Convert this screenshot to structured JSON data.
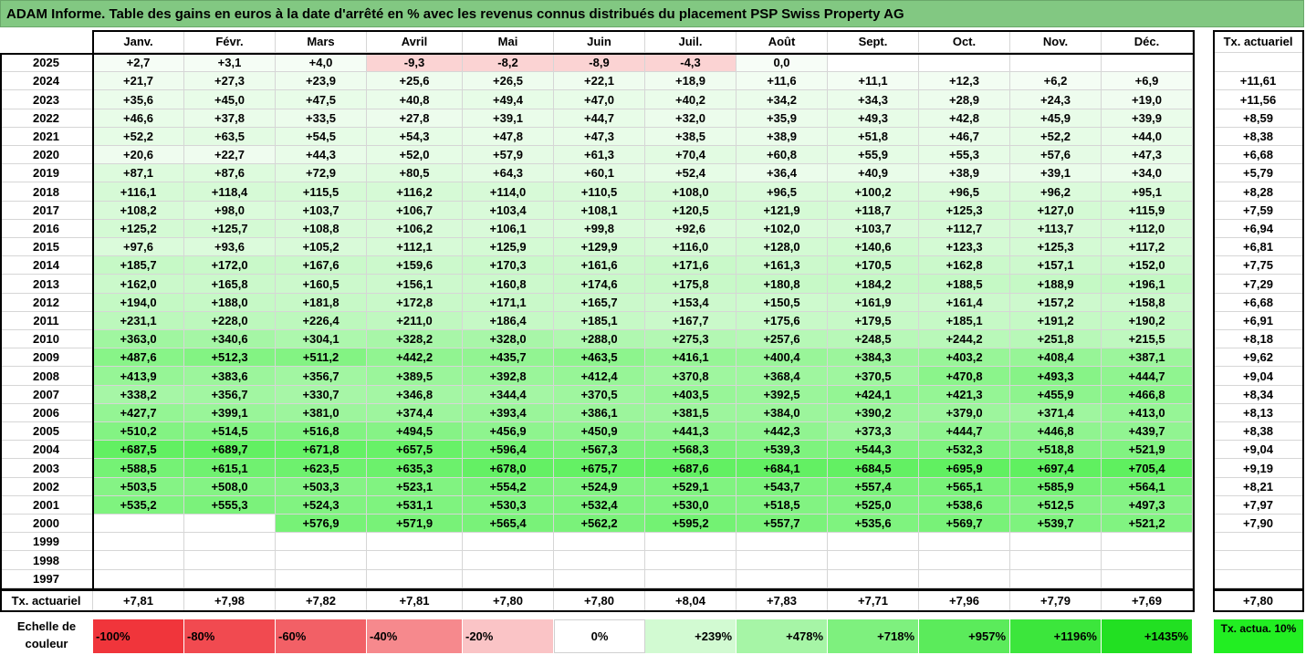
{
  "title": "ADAM Informe. Table des gains en euros à la date d'arrêté en % avec les revenus connus distribués du placement PSP Swiss Property AG",
  "chart_data": {
    "type": "heatmap",
    "months": [
      "Janv.",
      "Févr.",
      "Mars",
      "Avril",
      "Mai",
      "Juin",
      "Juil.",
      "Août",
      "Sept.",
      "Oct.",
      "Nov.",
      "Déc."
    ],
    "rate_header": "Tx. actuariel",
    "rows": [
      {
        "year": "2025",
        "values": [
          "+2,7",
          "+3,1",
          "+4,0",
          "-9,3",
          "-8,2",
          "-8,9",
          "-4,3",
          "0,0",
          "",
          "",
          "",
          ""
        ],
        "rate": ""
      },
      {
        "year": "2024",
        "values": [
          "+21,7",
          "+27,3",
          "+23,9",
          "+25,6",
          "+26,5",
          "+22,1",
          "+18,9",
          "+11,6",
          "+11,1",
          "+12,3",
          "+6,2",
          "+6,9"
        ],
        "rate": "+11,61"
      },
      {
        "year": "2023",
        "values": [
          "+35,6",
          "+45,0",
          "+47,5",
          "+40,8",
          "+49,4",
          "+47,0",
          "+40,2",
          "+34,2",
          "+34,3",
          "+28,9",
          "+24,3",
          "+19,0"
        ],
        "rate": "+11,56"
      },
      {
        "year": "2022",
        "values": [
          "+46,6",
          "+37,8",
          "+33,5",
          "+27,8",
          "+39,1",
          "+44,7",
          "+32,0",
          "+35,9",
          "+49,3",
          "+42,8",
          "+45,9",
          "+39,9"
        ],
        "rate": "+8,59"
      },
      {
        "year": "2021",
        "values": [
          "+52,2",
          "+63,5",
          "+54,5",
          "+54,3",
          "+47,8",
          "+47,3",
          "+38,5",
          "+38,9",
          "+51,8",
          "+46,7",
          "+52,2",
          "+44,0"
        ],
        "rate": "+8,38"
      },
      {
        "year": "2020",
        "values": [
          "+20,6",
          "+22,7",
          "+44,3",
          "+52,0",
          "+57,9",
          "+61,3",
          "+70,4",
          "+60,8",
          "+55,9",
          "+55,3",
          "+57,6",
          "+47,3"
        ],
        "rate": "+6,68"
      },
      {
        "year": "2019",
        "values": [
          "+87,1",
          "+87,6",
          "+72,9",
          "+80,5",
          "+64,3",
          "+60,1",
          "+52,4",
          "+36,4",
          "+40,9",
          "+38,9",
          "+39,1",
          "+34,0"
        ],
        "rate": "+5,79"
      },
      {
        "year": "2018",
        "values": [
          "+116,1",
          "+118,4",
          "+115,5",
          "+116,2",
          "+114,0",
          "+110,5",
          "+108,0",
          "+96,5",
          "+100,2",
          "+96,5",
          "+96,2",
          "+95,1"
        ],
        "rate": "+8,28"
      },
      {
        "year": "2017",
        "values": [
          "+108,2",
          "+98,0",
          "+103,7",
          "+106,7",
          "+103,4",
          "+108,1",
          "+120,5",
          "+121,9",
          "+118,7",
          "+125,3",
          "+127,0",
          "+115,9"
        ],
        "rate": "+7,59"
      },
      {
        "year": "2016",
        "values": [
          "+125,2",
          "+125,7",
          "+108,8",
          "+106,2",
          "+106,1",
          "+99,8",
          "+92,6",
          "+102,0",
          "+103,7",
          "+112,7",
          "+113,7",
          "+112,0"
        ],
        "rate": "+6,94"
      },
      {
        "year": "2015",
        "values": [
          "+97,6",
          "+93,6",
          "+105,2",
          "+112,1",
          "+125,9",
          "+129,9",
          "+116,0",
          "+128,0",
          "+140,6",
          "+123,3",
          "+125,3",
          "+117,2"
        ],
        "rate": "+6,81"
      },
      {
        "year": "2014",
        "values": [
          "+185,7",
          "+172,0",
          "+167,6",
          "+159,6",
          "+170,3",
          "+161,6",
          "+171,6",
          "+161,3",
          "+170,5",
          "+162,8",
          "+157,1",
          "+152,0"
        ],
        "rate": "+7,75"
      },
      {
        "year": "2013",
        "values": [
          "+162,0",
          "+165,8",
          "+160,5",
          "+156,1",
          "+160,8",
          "+174,6",
          "+175,8",
          "+180,8",
          "+184,2",
          "+188,5",
          "+188,9",
          "+196,1"
        ],
        "rate": "+7,29"
      },
      {
        "year": "2012",
        "values": [
          "+194,0",
          "+188,0",
          "+181,8",
          "+172,8",
          "+171,1",
          "+165,7",
          "+153,4",
          "+150,5",
          "+161,9",
          "+161,4",
          "+157,2",
          "+158,8"
        ],
        "rate": "+6,68"
      },
      {
        "year": "2011",
        "values": [
          "+231,1",
          "+228,0",
          "+226,4",
          "+211,0",
          "+186,4",
          "+185,1",
          "+167,7",
          "+175,6",
          "+179,5",
          "+185,1",
          "+191,2",
          "+190,2"
        ],
        "rate": "+6,91"
      },
      {
        "year": "2010",
        "values": [
          "+363,0",
          "+340,6",
          "+304,1",
          "+328,2",
          "+328,0",
          "+288,0",
          "+275,3",
          "+257,6",
          "+248,5",
          "+244,2",
          "+251,8",
          "+215,5"
        ],
        "rate": "+8,18"
      },
      {
        "year": "2009",
        "values": [
          "+487,6",
          "+512,3",
          "+511,2",
          "+442,2",
          "+435,7",
          "+463,5",
          "+416,1",
          "+400,4",
          "+384,3",
          "+403,2",
          "+408,4",
          "+387,1"
        ],
        "rate": "+9,62"
      },
      {
        "year": "2008",
        "values": [
          "+413,9",
          "+383,6",
          "+356,7",
          "+389,5",
          "+392,8",
          "+412,4",
          "+370,8",
          "+368,4",
          "+370,5",
          "+470,8",
          "+493,3",
          "+444,7"
        ],
        "rate": "+9,04"
      },
      {
        "year": "2007",
        "values": [
          "+338,2",
          "+356,7",
          "+330,7",
          "+346,8",
          "+344,4",
          "+370,5",
          "+403,5",
          "+392,5",
          "+424,1",
          "+421,3",
          "+455,9",
          "+466,8"
        ],
        "rate": "+8,34"
      },
      {
        "year": "2006",
        "values": [
          "+427,7",
          "+399,1",
          "+381,0",
          "+374,4",
          "+393,4",
          "+386,1",
          "+381,5",
          "+384,0",
          "+390,2",
          "+379,0",
          "+371,4",
          "+413,0"
        ],
        "rate": "+8,13"
      },
      {
        "year": "2005",
        "values": [
          "+510,2",
          "+514,5",
          "+516,8",
          "+494,5",
          "+456,9",
          "+450,9",
          "+441,3",
          "+442,3",
          "+373,3",
          "+444,7",
          "+446,8",
          "+439,7"
        ],
        "rate": "+8,38"
      },
      {
        "year": "2004",
        "values": [
          "+687,5",
          "+689,7",
          "+671,8",
          "+657,5",
          "+596,4",
          "+567,3",
          "+568,3",
          "+539,3",
          "+544,3",
          "+532,3",
          "+518,8",
          "+521,9"
        ],
        "rate": "+9,04"
      },
      {
        "year": "2003",
        "values": [
          "+588,5",
          "+615,1",
          "+623,5",
          "+635,3",
          "+678,0",
          "+675,7",
          "+687,6",
          "+684,1",
          "+684,5",
          "+695,9",
          "+697,4",
          "+705,4"
        ],
        "rate": "+9,19"
      },
      {
        "year": "2002",
        "values": [
          "+503,5",
          "+508,0",
          "+503,3",
          "+523,1",
          "+554,2",
          "+524,9",
          "+529,1",
          "+543,7",
          "+557,4",
          "+565,1",
          "+585,9",
          "+564,1"
        ],
        "rate": "+8,21"
      },
      {
        "year": "2001",
        "values": [
          "+535,2",
          "+555,3",
          "+524,3",
          "+531,1",
          "+530,3",
          "+532,4",
          "+530,0",
          "+518,5",
          "+525,0",
          "+538,6",
          "+512,5",
          "+497,3"
        ],
        "rate": "+7,97"
      },
      {
        "year": "2000",
        "values": [
          "",
          "",
          "+576,9",
          "+571,9",
          "+565,4",
          "+562,2",
          "+595,2",
          "+557,7",
          "+535,6",
          "+569,7",
          "+539,7",
          "+521,2"
        ],
        "rate": "+7,90"
      },
      {
        "year": "1999",
        "values": [
          "",
          "",
          "",
          "",
          "",
          "",
          "",
          "",
          "",
          "",
          "",
          ""
        ],
        "rate": ""
      },
      {
        "year": "1998",
        "values": [
          "",
          "",
          "",
          "",
          "",
          "",
          "",
          "",
          "",
          "",
          "",
          ""
        ],
        "rate": ""
      },
      {
        "year": "1997",
        "values": [
          "",
          "",
          "",
          "",
          "",
          "",
          "",
          "",
          "",
          "",
          "",
          ""
        ],
        "rate": ""
      }
    ],
    "footer": {
      "label": "Tx. actuariel",
      "values": [
        "+7,81",
        "+7,98",
        "+7,82",
        "+7,81",
        "+7,80",
        "+7,80",
        "+8,04",
        "+7,83",
        "+7,71",
        "+7,96",
        "+7,79",
        "+7,69"
      ],
      "rate": "+7,80"
    },
    "scale": {
      "label": "Echelle de couleur",
      "stops": [
        "-100%",
        "-80%",
        "-60%",
        "-40%",
        "-20%",
        "0%",
        "+239%",
        "+478%",
        "+718%",
        "+957%",
        "+1196%",
        "+1435%"
      ],
      "colors": [
        "#f0353b",
        "#f14a50",
        "#f26066",
        "#f6898d",
        "#fac4c6",
        "#ffffff",
        "#d2fad2",
        "#a6f5a6",
        "#7ef07e",
        "#5beb5b",
        "#3ce63c",
        "#22e022"
      ],
      "tx_label": "Tx. actua. 10%",
      "tx_color": "#22ee22"
    },
    "colors": {
      "title_bg": "#82c882",
      "negative": "#fbd3d3",
      "positive_max": "#5ef05e"
    }
  }
}
